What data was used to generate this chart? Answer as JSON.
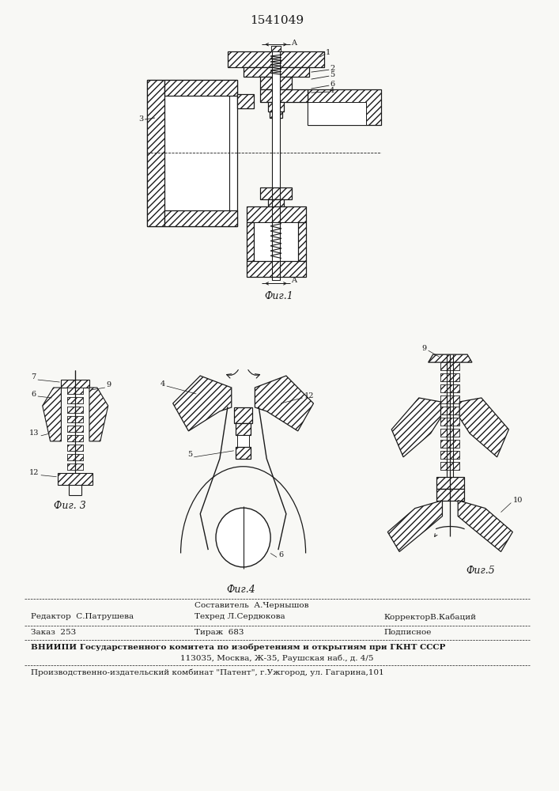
{
  "title_number": "1541049",
  "background_color": "#f8f8f5",
  "line_color": "#1a1a1a",
  "fig1_label": "Фиг.1",
  "fig3_label": "Фиг. 3",
  "fig4_label": "Фиг.4",
  "fig5_label": "Фиг.5",
  "footer_col1_line1": "Редактор  С.Патрушева",
  "footer_col2_line1": "Составитель  А.Чернышов",
  "footer_col2_line2": "Техред Л.Сердюкова",
  "footer_col3_line1": "КорректорВ.Кабаций",
  "footer_row2_col1": "Заказ  253",
  "footer_row2_col2": "Тираж  683",
  "footer_row2_col3": "Подписное",
  "footer_vniip1": "ВНИИПИ Государственного комитета по изобретениям и открытиям при ГКНТ СССР",
  "footer_vniip2": "113035, Москва, Ж-35, Раушская наб., д. 4/5",
  "footer_prod": "Производственно-издательский комбинат \"Патент\", г.Ужгород, ул. Гагарина,101"
}
